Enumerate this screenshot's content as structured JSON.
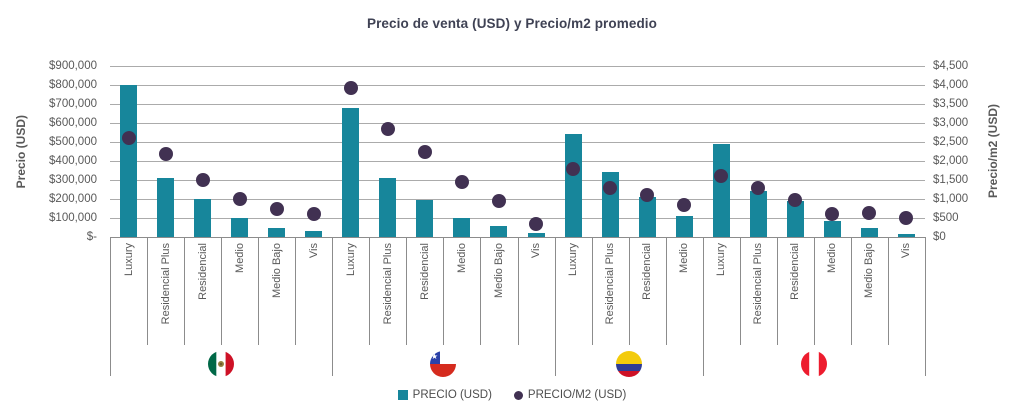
{
  "title": "Precio de venta (USD) y Precio/m2 promedio",
  "left_axis": {
    "title": "Precio (USD)",
    "ticks": [
      "$900,000",
      "$800,000",
      "$700,000",
      "$600,000",
      "$500,000",
      "$400,000",
      "$300,000",
      "$200,000",
      "$100,000",
      "$-"
    ]
  },
  "right_axis": {
    "title": "Precio/m2 (USD)",
    "ticks": [
      "$4,500",
      "$4,000",
      "$3,500",
      "$3,000",
      "$2,500",
      "$2,000",
      "$1,500",
      "$1,000",
      "$500",
      "$0"
    ]
  },
  "legend": [
    {
      "label": "PRECIO (USD)",
      "marker": "square"
    },
    {
      "label": "PRECIO/M2 (USD)",
      "marker": "circle"
    }
  ],
  "colors": {
    "bar": "#17869B",
    "dot": "#413152",
    "grid": "#ABABAB",
    "axis": "#8C8C8C",
    "tick": "#595959",
    "title": "#3F4254",
    "legend_text": "#4D4D4D"
  },
  "chart_data": {
    "type": "bar",
    "secondary_type": "scatter",
    "title": "Precio de venta (USD) y Precio/m2 promedio",
    "left_axis_label": "Precio (USD)",
    "right_axis_label": "Precio/m2 (USD)",
    "left_axis_range": [
      0,
      900000
    ],
    "left_axis_step": 100000,
    "right_axis_range": [
      0,
      4500
    ],
    "right_axis_step": 500,
    "grid": true,
    "legend_position": "bottom",
    "series": [
      {
        "name": "PRECIO (USD)",
        "type": "bar",
        "axis": "left"
      },
      {
        "name": "PRECIO/M2 (USD)",
        "type": "scatter",
        "axis": "right"
      }
    ],
    "groups": [
      {
        "country": "Mexico",
        "flag_icon": "mexico-flag-icon",
        "categories": [
          "Luxury",
          "Residencial Plus",
          "Residencial",
          "Medio",
          "Medio Bajo",
          "Vis"
        ],
        "precio_usd": [
          800000,
          310000,
          200000,
          100000,
          50000,
          30000
        ],
        "precio_m2_usd": [
          2600,
          2190,
          1500,
          1000,
          730,
          600
        ]
      },
      {
        "country": "Chile",
        "flag_icon": "chile-flag-icon",
        "categories": [
          "Luxury",
          "Residencial Plus",
          "Residencial",
          "Medio",
          "Medio Bajo",
          "Vis"
        ],
        "precio_usd": [
          680000,
          310000,
          195000,
          100000,
          60000,
          20000
        ],
        "precio_m2_usd": [
          3930,
          2830,
          2250,
          1440,
          950,
          350
        ]
      },
      {
        "country": "Colombia",
        "flag_icon": "colombia-flag-icon",
        "categories": [
          "Luxury",
          "Residencial Plus",
          "Residencial",
          "Medio"
        ],
        "precio_usd": [
          540000,
          340000,
          210000,
          110000
        ],
        "precio_m2_usd": [
          1780,
          1300,
          1100,
          830
        ]
      },
      {
        "country": "Peru",
        "flag_icon": "peru-flag-icon",
        "categories": [
          "Luxury",
          "Residencial Plus",
          "Residencial",
          "Medio",
          "Medio Bajo",
          "Vis"
        ],
        "precio_usd": [
          490000,
          240000,
          190000,
          85000,
          50000,
          15000
        ],
        "precio_m2_usd": [
          1600,
          1280,
          980,
          600,
          620,
          500
        ]
      }
    ]
  }
}
